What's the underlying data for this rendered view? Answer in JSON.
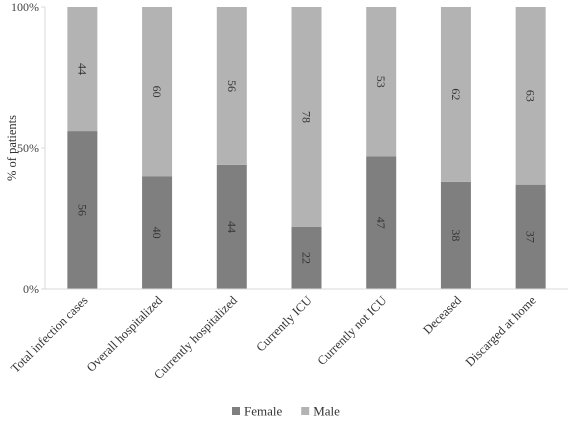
{
  "chart_data": {
    "type": "bar",
    "stacked": true,
    "categories": [
      "Total infection cases",
      "Overall hospitalized",
      "Currently hospitalized",
      "Currently ICU",
      "Currently not ICU",
      "Deceased",
      "Discarged at home"
    ],
    "series": [
      {
        "name": "Female",
        "values": [
          56,
          40,
          44,
          22,
          47,
          38,
          37
        ]
      },
      {
        "name": "Male",
        "values": [
          44,
          60,
          56,
          78,
          53,
          62,
          63
        ]
      }
    ],
    "title": "",
    "xlabel": "",
    "ylabel": "% of patients",
    "ylim": [
      0,
      100
    ],
    "yticks": [
      "0%",
      "50%",
      "100%"
    ],
    "grid": false,
    "legend_position": "bottom",
    "colors": {
      "Female": "#7f7f7f",
      "Male": "#b3b3b3",
      "axis": "#d9d9d9"
    }
  }
}
